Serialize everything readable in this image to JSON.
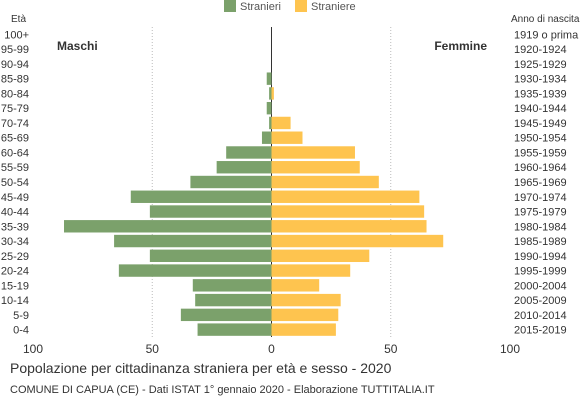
{
  "chart_data": {
    "type": "bar",
    "orientation": "horizontal-pyramid",
    "title": "Popolazione per cittadinanza straniera per età e sesso - 2020",
    "subtitle": "COMUNE DI CAPUA (CE) - Dati ISTAT 1° gennaio 2020 - Elaborazione TUTTITALIA.IT",
    "left_axis_label": "Età",
    "right_axis_label": "Anno di nascita",
    "left_group_label": "Maschi",
    "right_group_label": "Femmine",
    "legend_position": "top-center",
    "xlim": [
      -100,
      100
    ],
    "x_ticks": [
      {
        "value": -100,
        "label": "100"
      },
      {
        "value": -50,
        "label": "50"
      },
      {
        "value": 0,
        "label": "0"
      },
      {
        "value": 50,
        "label": "50"
      },
      {
        "value": 100,
        "label": "100"
      }
    ],
    "grid": true,
    "categories": [
      "100+",
      "95-99",
      "90-94",
      "85-89",
      "80-84",
      "75-79",
      "70-74",
      "65-69",
      "60-64",
      "55-59",
      "50-54",
      "45-49",
      "40-44",
      "35-39",
      "30-34",
      "25-29",
      "20-24",
      "15-19",
      "10-14",
      "5-9",
      "0-4"
    ],
    "birth_years": [
      "1919 o prima",
      "1920-1924",
      "1925-1929",
      "1930-1934",
      "1935-1939",
      "1940-1944",
      "1945-1949",
      "1950-1954",
      "1955-1959",
      "1960-1964",
      "1965-1969",
      "1970-1974",
      "1975-1979",
      "1980-1984",
      "1985-1989",
      "1990-1994",
      "1995-1999",
      "2000-2004",
      "2005-2009",
      "2010-2014",
      "2015-2019"
    ],
    "series": [
      {
        "name": "Stranieri",
        "color": "#7ba16b",
        "values": [
          0,
          0,
          0,
          2,
          1,
          2,
          1,
          4,
          19,
          23,
          34,
          59,
          51,
          87,
          66,
          51,
          64,
          33,
          32,
          38,
          31
        ]
      },
      {
        "name": "Straniere",
        "color": "#fec44f",
        "values": [
          0,
          0,
          0,
          0,
          1,
          0,
          8,
          13,
          35,
          37,
          45,
          62,
          64,
          65,
          72,
          41,
          33,
          20,
          29,
          28,
          27
        ]
      }
    ]
  }
}
